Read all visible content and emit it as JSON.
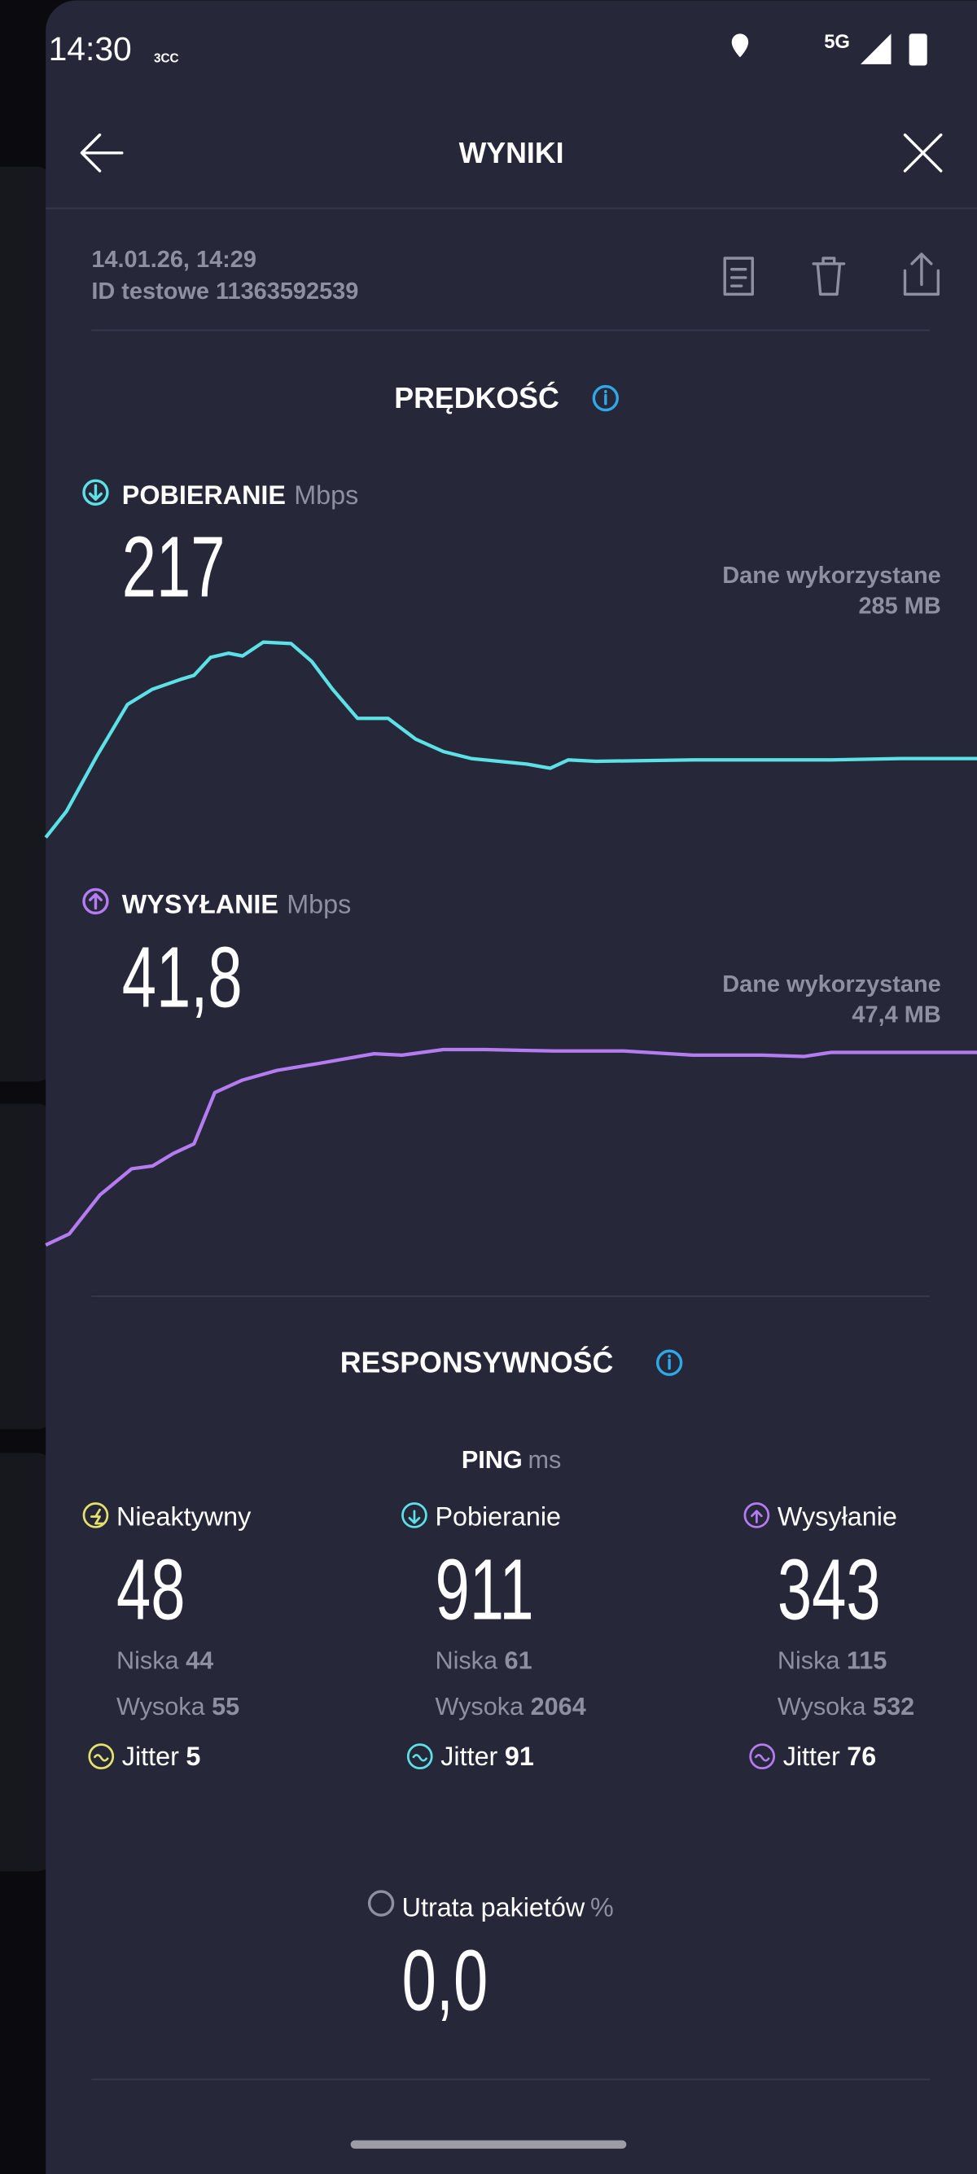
{
  "status_bar": {
    "time": "14:30",
    "carrier_tag": "3CC",
    "network": "5G"
  },
  "header": {
    "title": "WYNIKI"
  },
  "test_info": {
    "date": "14.01.26, 14:29",
    "test_id": "ID testowe 11363592539"
  },
  "speed": {
    "title": "PRĘDKOŚĆ",
    "download": {
      "label": "POBIERANIE",
      "unit": "Mbps",
      "value": "217",
      "data_used_label": "Dane wykorzystane",
      "data_used": "285 MB"
    },
    "upload": {
      "label": "WYSYŁANIE",
      "unit": "Mbps",
      "value": "41,8",
      "data_used_label": "Dane wykorzystane",
      "data_used": "47,4 MB"
    }
  },
  "responsiveness": {
    "title": "RESPONSYWNOŚĆ",
    "ping_label": "PING",
    "ping_unit": "ms",
    "columns": [
      {
        "label": "Nieaktywny",
        "value": "48",
        "low_label": "Niska",
        "low": "44",
        "high_label": "Wysoka",
        "high": "55",
        "jitter_label": "Jitter",
        "jitter": "5"
      },
      {
        "label": "Pobieranie",
        "value": "911",
        "low_label": "Niska",
        "low": "61",
        "high_label": "Wysoka",
        "high": "2064",
        "jitter_label": "Jitter",
        "jitter": "91"
      },
      {
        "label": "Wysyłanie",
        "value": "343",
        "low_label": "Niska",
        "low": "115",
        "high_label": "Wysoka",
        "high": "532",
        "jitter_label": "Jitter",
        "jitter": "76"
      }
    ],
    "packet_loss": {
      "label": "Utrata pakietów",
      "unit": "%",
      "value": "0,0"
    }
  }
}
